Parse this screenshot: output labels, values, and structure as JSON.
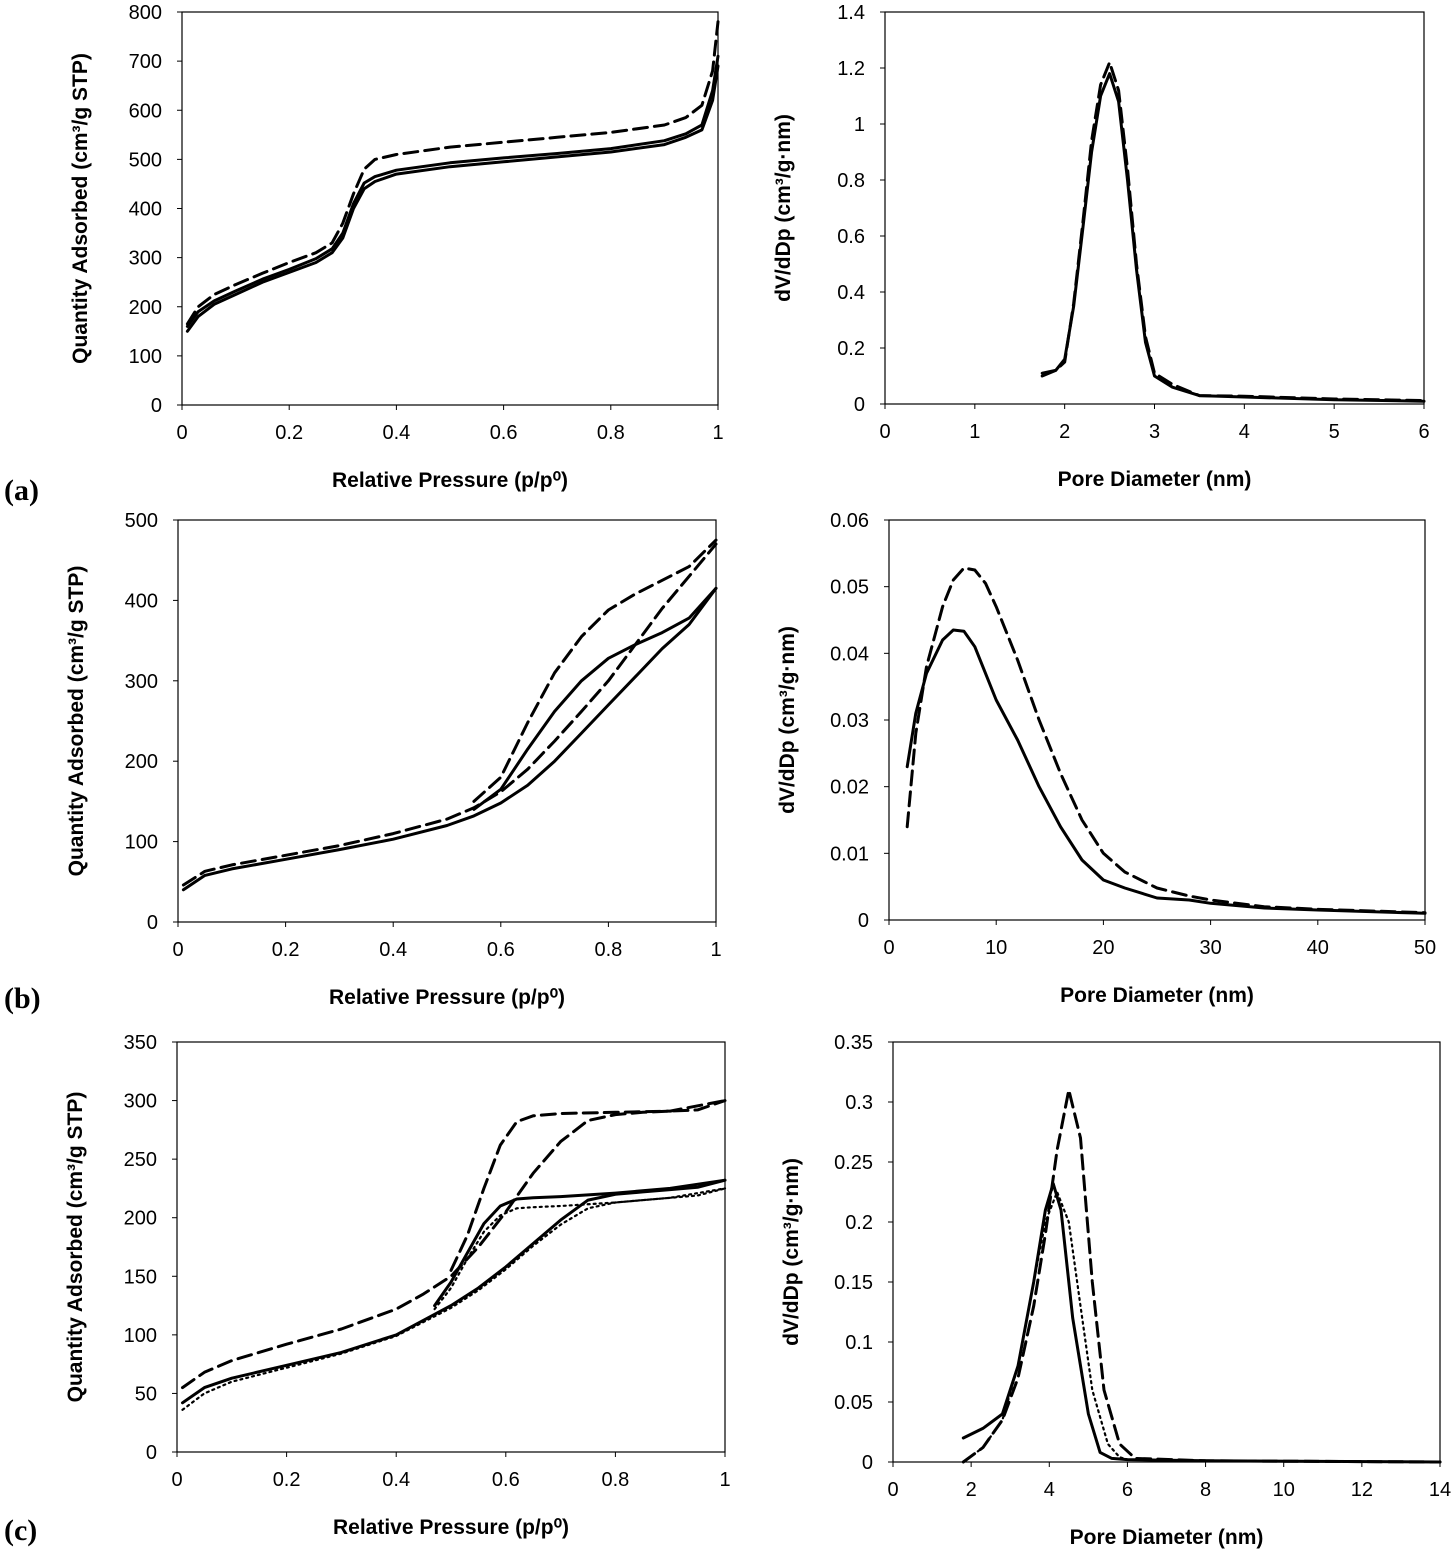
{
  "figure": {
    "panel_labels": [
      "(a)",
      "(b)",
      "(c)"
    ]
  },
  "chart_data": [
    {
      "id": "a-isotherm",
      "type": "line",
      "panel": "(a)",
      "xlabel": "Relative Pressure (p/p⁰)",
      "ylabel": "Quantity Adsorbed (cm³/g STP)",
      "xlim": [
        0,
        1
      ],
      "ylim": [
        0,
        800
      ],
      "xticks": [
        "0",
        "0.2",
        "0.4",
        "0.6",
        "0.8",
        "1"
      ],
      "yticks": [
        "0",
        "100",
        "200",
        "300",
        "400",
        "500",
        "600",
        "700",
        "800"
      ],
      "series": [
        {
          "name": "solid-1",
          "style": "solid",
          "x": [
            0.01,
            0.03,
            0.06,
            0.1,
            0.15,
            0.2,
            0.25,
            0.28,
            0.3,
            0.32,
            0.34,
            0.36,
            0.4,
            0.5,
            0.6,
            0.7,
            0.8,
            0.9,
            0.94,
            0.97,
            0.99,
            1.0
          ],
          "y": [
            150,
            180,
            205,
            225,
            250,
            270,
            290,
            310,
            340,
            400,
            440,
            455,
            470,
            485,
            495,
            505,
            515,
            530,
            545,
            560,
            620,
            690
          ]
        },
        {
          "name": "solid-2",
          "style": "solid",
          "x": [
            0.01,
            0.03,
            0.06,
            0.1,
            0.15,
            0.2,
            0.25,
            0.28,
            0.3,
            0.32,
            0.34,
            0.36,
            0.4,
            0.5,
            0.6,
            0.7,
            0.8,
            0.9,
            0.94,
            0.97,
            0.99,
            1.0
          ],
          "y": [
            160,
            190,
            212,
            232,
            256,
            276,
            298,
            318,
            350,
            410,
            452,
            465,
            478,
            493,
            503,
            512,
            522,
            538,
            552,
            570,
            640,
            710
          ]
        },
        {
          "name": "dashed",
          "style": "dashed",
          "x": [
            0.01,
            0.03,
            0.06,
            0.1,
            0.15,
            0.2,
            0.25,
            0.28,
            0.3,
            0.32,
            0.34,
            0.36,
            0.4,
            0.5,
            0.6,
            0.7,
            0.8,
            0.9,
            0.94,
            0.97,
            0.99,
            1.0
          ],
          "y": [
            165,
            200,
            225,
            245,
            268,
            290,
            310,
            330,
            370,
            430,
            480,
            500,
            510,
            525,
            535,
            545,
            555,
            570,
            585,
            610,
            680,
            780
          ]
        }
      ]
    },
    {
      "id": "a-psd",
      "type": "line",
      "panel": "(a)",
      "xlabel": "Pore Diameter (nm)",
      "ylabel": "dV/dDp (cm³/g·nm)",
      "xlim": [
        0,
        6
      ],
      "ylim": [
        0,
        1.4
      ],
      "xticks": [
        "0",
        "1",
        "2",
        "3",
        "4",
        "5",
        "6"
      ],
      "yticks": [
        "0",
        "0.2",
        "0.4",
        "0.6",
        "0.8",
        "1",
        "1.2",
        "1.4"
      ],
      "series": [
        {
          "name": "solid",
          "style": "solid",
          "x": [
            1.75,
            1.9,
            2.0,
            2.1,
            2.2,
            2.3,
            2.4,
            2.5,
            2.6,
            2.7,
            2.8,
            2.9,
            3.0,
            3.2,
            3.5,
            4.0,
            5.0,
            6.0
          ],
          "y": [
            0.11,
            0.12,
            0.16,
            0.35,
            0.62,
            0.9,
            1.1,
            1.18,
            1.08,
            0.8,
            0.48,
            0.22,
            0.1,
            0.06,
            0.03,
            0.025,
            0.015,
            0.01
          ]
        },
        {
          "name": "dashed",
          "style": "dashed",
          "x": [
            1.75,
            1.9,
            2.0,
            2.1,
            2.2,
            2.3,
            2.4,
            2.5,
            2.6,
            2.7,
            2.8,
            2.9,
            3.0,
            3.2,
            3.5,
            4.0,
            5.0,
            6.0
          ],
          "y": [
            0.1,
            0.12,
            0.15,
            0.36,
            0.64,
            0.94,
            1.14,
            1.22,
            1.12,
            0.84,
            0.5,
            0.24,
            0.11,
            0.07,
            0.03,
            0.028,
            0.018,
            0.012
          ]
        }
      ]
    },
    {
      "id": "b-isotherm",
      "type": "line",
      "panel": "(b)",
      "xlabel": "Relative Pressure (p/p⁰)",
      "ylabel": "Quantity Adsorbed (cm³/g STP)",
      "xlim": [
        0,
        1
      ],
      "ylim": [
        0,
        500
      ],
      "xticks": [
        "0",
        "0.2",
        "0.4",
        "0.6",
        "0.8",
        "1"
      ],
      "yticks": [
        "0",
        "100",
        "200",
        "300",
        "400",
        "500"
      ],
      "series": [
        {
          "name": "solid-adsorption",
          "style": "solid",
          "x": [
            0.01,
            0.05,
            0.1,
            0.2,
            0.3,
            0.4,
            0.5,
            0.55,
            0.6,
            0.65,
            0.7,
            0.75,
            0.8,
            0.85,
            0.9,
            0.95,
            1.0
          ],
          "y": [
            40,
            58,
            66,
            78,
            90,
            103,
            120,
            132,
            148,
            170,
            200,
            235,
            270,
            305,
            340,
            370,
            415
          ]
        },
        {
          "name": "solid-desorption",
          "style": "solid",
          "x": [
            0.55,
            0.6,
            0.65,
            0.7,
            0.75,
            0.8,
            0.85,
            0.9,
            0.95,
            1.0
          ],
          "y": [
            140,
            165,
            215,
            262,
            300,
            328,
            345,
            360,
            378,
            415
          ]
        },
        {
          "name": "dashed-adsorption",
          "style": "dashed",
          "x": [
            0.01,
            0.05,
            0.1,
            0.2,
            0.3,
            0.4,
            0.5,
            0.55,
            0.6,
            0.65,
            0.7,
            0.75,
            0.8,
            0.85,
            0.9,
            0.95,
            1.0
          ],
          "y": [
            46,
            63,
            71,
            83,
            95,
            110,
            128,
            142,
            162,
            190,
            225,
            262,
            300,
            345,
            390,
            430,
            470
          ]
        },
        {
          "name": "dashed-desorption",
          "style": "dashed",
          "x": [
            0.55,
            0.6,
            0.65,
            0.7,
            0.75,
            0.8,
            0.85,
            0.9,
            0.95,
            1.0
          ],
          "y": [
            150,
            180,
            248,
            310,
            355,
            388,
            408,
            425,
            442,
            475
          ]
        }
      ]
    },
    {
      "id": "b-psd",
      "type": "line",
      "panel": "(b)",
      "xlabel": "Pore Diameter (nm)",
      "ylabel": "dV/dDp (cm³/g·nm)",
      "xlim": [
        0,
        50
      ],
      "ylim": [
        0,
        0.06
      ],
      "xticks": [
        "0",
        "10",
        "20",
        "30",
        "40",
        "50"
      ],
      "yticks": [
        "0",
        "0.01",
        "0.02",
        "0.03",
        "0.04",
        "0.05",
        "0.06"
      ],
      "series": [
        {
          "name": "solid",
          "style": "solid",
          "x": [
            1.7,
            2.5,
            3.5,
            5,
            6,
            7,
            8,
            9,
            10,
            12,
            14,
            16,
            18,
            20,
            22,
            25,
            28,
            30,
            35,
            40,
            50
          ],
          "y": [
            0.023,
            0.031,
            0.037,
            0.042,
            0.0435,
            0.0433,
            0.041,
            0.037,
            0.033,
            0.027,
            0.02,
            0.014,
            0.009,
            0.006,
            0.0048,
            0.0033,
            0.003,
            0.0025,
            0.0018,
            0.0015,
            0.001
          ]
        },
        {
          "name": "dashed",
          "style": "dashed",
          "x": [
            1.7,
            2.5,
            3.5,
            5,
            6,
            7,
            8,
            9,
            10,
            12,
            14,
            16,
            18,
            20,
            22,
            25,
            28,
            30,
            35,
            40,
            50
          ],
          "y": [
            0.014,
            0.028,
            0.038,
            0.047,
            0.051,
            0.0528,
            0.0525,
            0.0505,
            0.047,
            0.039,
            0.03,
            0.022,
            0.015,
            0.01,
            0.0072,
            0.0048,
            0.0036,
            0.003,
            0.002,
            0.0016,
            0.0011
          ]
        }
      ]
    },
    {
      "id": "c-isotherm",
      "type": "line",
      "panel": "(c)",
      "xlabel": "Relative Pressure (p/p⁰)",
      "ylabel": "Quantity Adsorbed (cm³/g STP)",
      "xlim": [
        0,
        1
      ],
      "ylim": [
        0,
        350
      ],
      "xticks": [
        "0",
        "0.2",
        "0.4",
        "0.6",
        "0.8",
        "1"
      ],
      "yticks": [
        "0",
        "50",
        "100",
        "150",
        "200",
        "250",
        "300",
        "350"
      ],
      "series": [
        {
          "name": "solid-adsorption",
          "style": "solid",
          "x": [
            0.01,
            0.05,
            0.1,
            0.2,
            0.3,
            0.4,
            0.5,
            0.55,
            0.6,
            0.65,
            0.7,
            0.75,
            0.8,
            0.85,
            0.9,
            0.95,
            1.0
          ],
          "y": [
            42,
            55,
            63,
            74,
            85,
            100,
            125,
            140,
            158,
            178,
            198,
            215,
            220,
            222,
            224,
            226,
            232
          ]
        },
        {
          "name": "solid-desorption",
          "style": "solid",
          "x": [
            0.47,
            0.5,
            0.53,
            0.56,
            0.59,
            0.62,
            0.65,
            0.7,
            0.8,
            0.9,
            1.0
          ],
          "y": [
            125,
            145,
            170,
            195,
            210,
            216,
            217,
            218,
            221,
            225,
            232
          ]
        },
        {
          "name": "dashed-adsorption",
          "style": "dashed",
          "x": [
            0.01,
            0.05,
            0.1,
            0.2,
            0.3,
            0.4,
            0.45,
            0.5,
            0.55,
            0.6,
            0.65,
            0.7,
            0.75,
            0.8,
            0.85,
            0.9,
            0.95,
            1.0
          ],
          "y": [
            55,
            68,
            78,
            92,
            105,
            122,
            135,
            150,
            175,
            205,
            238,
            265,
            283,
            288,
            290,
            291,
            292,
            300
          ]
        },
        {
          "name": "dashed-desorption",
          "style": "dashed",
          "x": [
            0.5,
            0.53,
            0.56,
            0.59,
            0.62,
            0.65,
            0.7,
            0.8,
            0.9,
            1.0
          ],
          "y": [
            155,
            185,
            225,
            262,
            282,
            287,
            289,
            290,
            291,
            300
          ]
        },
        {
          "name": "dotted-adsorption",
          "style": "dotted",
          "x": [
            0.01,
            0.05,
            0.1,
            0.2,
            0.3,
            0.4,
            0.5,
            0.55,
            0.6,
            0.65,
            0.7,
            0.75,
            0.8,
            0.85,
            0.9,
            0.95,
            1.0
          ],
          "y": [
            36,
            50,
            60,
            72,
            84,
            99,
            123,
            138,
            156,
            176,
            194,
            208,
            213,
            215,
            217,
            219,
            225
          ]
        },
        {
          "name": "dotted-desorption",
          "style": "dotted",
          "x": [
            0.47,
            0.5,
            0.53,
            0.56,
            0.59,
            0.62,
            0.65,
            0.7,
            0.8,
            0.9,
            1.0
          ],
          "y": [
            122,
            140,
            165,
            188,
            202,
            208,
            209,
            210,
            213,
            217,
            225
          ]
        }
      ]
    },
    {
      "id": "c-psd",
      "type": "line",
      "panel": "(c)",
      "xlabel": "Pore Diameter (nm)",
      "ylabel": "dV/dDp (cm³/g·nm)",
      "xlim": [
        0,
        14
      ],
      "ylim": [
        0,
        0.35
      ],
      "xticks": [
        "0",
        "2",
        "4",
        "6",
        "8",
        "10",
        "12",
        "14"
      ],
      "yticks": [
        "0",
        "0.05",
        "0.1",
        "0.15",
        "0.2",
        "0.25",
        "0.3",
        "0.35"
      ],
      "series": [
        {
          "name": "solid",
          "style": "solid",
          "x": [
            1.8,
            2.3,
            2.8,
            3.2,
            3.6,
            3.9,
            4.1,
            4.3,
            4.6,
            5.0,
            5.3,
            5.6,
            6.0,
            8.0,
            14.0
          ],
          "y": [
            0.02,
            0.028,
            0.04,
            0.08,
            0.15,
            0.21,
            0.232,
            0.21,
            0.12,
            0.04,
            0.008,
            0.003,
            0.002,
            0.001,
            0.0
          ]
        },
        {
          "name": "dashed",
          "style": "dashed",
          "x": [
            1.8,
            2.3,
            2.8,
            3.2,
            3.6,
            3.9,
            4.2,
            4.5,
            4.8,
            5.1,
            5.4,
            5.8,
            6.2,
            8.0,
            14.0
          ],
          "y": [
            0.0,
            0.012,
            0.035,
            0.07,
            0.13,
            0.19,
            0.26,
            0.31,
            0.27,
            0.15,
            0.06,
            0.015,
            0.003,
            0.001,
            0.0
          ]
        },
        {
          "name": "dotted",
          "style": "dotted",
          "x": [
            1.8,
            2.3,
            2.8,
            3.2,
            3.6,
            3.9,
            4.2,
            4.5,
            4.8,
            5.1,
            5.5,
            5.8,
            6.0,
            8.0,
            14.0
          ],
          "y": [
            0.0,
            0.012,
            0.035,
            0.08,
            0.15,
            0.2,
            0.225,
            0.2,
            0.13,
            0.06,
            0.015,
            0.004,
            0.002,
            0.001,
            0.0
          ]
        }
      ]
    }
  ]
}
